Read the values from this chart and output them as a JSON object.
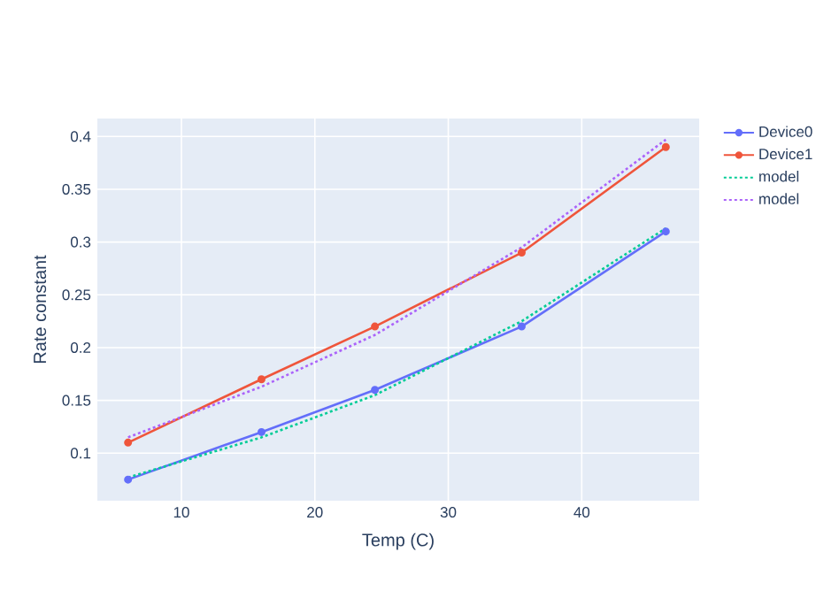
{
  "chart_data": {
    "type": "line",
    "xlabel": "Temp (C)",
    "ylabel": "Rate constant",
    "x": [
      6,
      16,
      24.5,
      35.5,
      46.3
    ],
    "series": [
      {
        "name": "Device0",
        "color": "#636efa",
        "marker": "circle",
        "line_style": "solid",
        "values": [
          0.075,
          0.12,
          0.16,
          0.22,
          0.31
        ]
      },
      {
        "name": "Device1",
        "color": "#ef553b",
        "marker": "circle",
        "line_style": "solid",
        "values": [
          0.11,
          0.17,
          0.22,
          0.29,
          0.39
        ]
      },
      {
        "name": "model",
        "color": "#00cc96",
        "marker": "none",
        "line_style": "dotted",
        "values": [
          0.077,
          0.115,
          0.155,
          0.225,
          0.313
        ]
      },
      {
        "name": "model",
        "color": "#ab63fa",
        "marker": "none",
        "line_style": "dotted",
        "values": [
          0.115,
          0.163,
          0.212,
          0.295,
          0.397
        ]
      }
    ],
    "xlim": [
      3.7,
      48.8
    ],
    "ylim": [
      0.055,
      0.417
    ],
    "xticks": [
      10,
      20,
      30,
      40
    ],
    "yticks": [
      0.1,
      0.15,
      0.2,
      0.25,
      0.3,
      0.35,
      0.4
    ],
    "grid": true,
    "legend": "top right"
  }
}
